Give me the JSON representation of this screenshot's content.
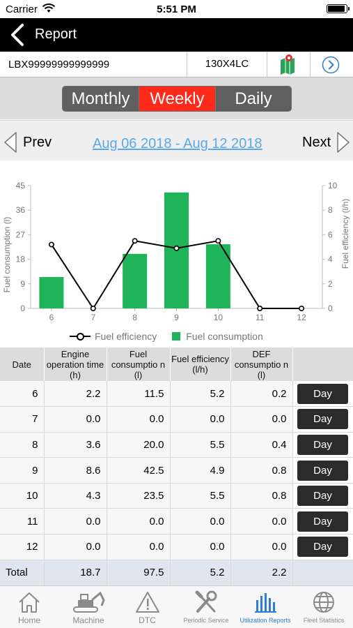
{
  "status_bar": {
    "carrier": "Carrier",
    "time": "5:51 PM",
    "battery_level": 0.95
  },
  "nav": {
    "title": "Report"
  },
  "machine": {
    "serial": "LBX99999999999999",
    "model": "130X4LC"
  },
  "period_tabs": [
    {
      "label": "Monthly",
      "active": false
    },
    {
      "label": "Weekly",
      "active": true
    },
    {
      "label": "Daily",
      "active": false
    }
  ],
  "date_nav": {
    "prev": "Prev",
    "range": "Aug 06 2018 - Aug 12 2018",
    "next": "Next"
  },
  "colors": {
    "bar": "#1fb45a",
    "active_tab": "#ff2a1a",
    "link": "#5aa8e8",
    "active_nav": "#2d7cd6"
  },
  "chart_data": {
    "type": "bar",
    "categories": [
      "6",
      "7",
      "8",
      "9",
      "10",
      "11",
      "12"
    ],
    "series": [
      {
        "name": "Fuel consumption",
        "type": "bar",
        "axis": "left",
        "values": [
          11.5,
          0.0,
          20.0,
          42.5,
          23.5,
          0.0,
          0.0
        ]
      },
      {
        "name": "Fuel efficiency",
        "type": "line",
        "axis": "right",
        "values": [
          5.2,
          0.0,
          5.5,
          4.9,
          5.5,
          0.0,
          0.0
        ]
      }
    ],
    "ylabel": "Fuel consumption (l)",
    "y2label": "Fuel efficiency (l/h)",
    "ylim": [
      0,
      45
    ],
    "yticks": [
      0,
      9,
      18,
      27,
      36,
      45
    ],
    "y2lim": [
      0,
      10
    ],
    "y2ticks": [
      0,
      2,
      4,
      6,
      8,
      10
    ],
    "legend_position": "bottom",
    "grid": false
  },
  "legend": {
    "line_label": "Fuel efficiency",
    "bar_label": "Fuel consumption"
  },
  "table": {
    "headers": [
      "Date",
      "Engine operation time (h)",
      "Fuel consumptio n (l)",
      "Fuel efficiency (l/h)",
      "DEF consumptio n (l)",
      ""
    ],
    "rows": [
      [
        "6",
        "2.2",
        "11.5",
        "5.2",
        "0.2"
      ],
      [
        "7",
        "0.0",
        "0.0",
        "0.0",
        "0.0"
      ],
      [
        "8",
        "3.6",
        "20.0",
        "5.5",
        "0.4"
      ],
      [
        "9",
        "8.6",
        "42.5",
        "4.9",
        "0.8"
      ],
      [
        "10",
        "4.3",
        "23.5",
        "5.5",
        "0.8"
      ],
      [
        "11",
        "0.0",
        "0.0",
        "0.0",
        "0.0"
      ],
      [
        "12",
        "0.0",
        "0.0",
        "0.0",
        "0.0"
      ]
    ],
    "row_button": "Day",
    "total": [
      "Total",
      "18.7",
      "97.5",
      "5.2",
      "2.2"
    ]
  },
  "tabbar": [
    {
      "label": "Home",
      "icon": "home-icon",
      "active": false
    },
    {
      "label": "Machine",
      "icon": "excavator-icon",
      "active": false
    },
    {
      "label": "DTC",
      "icon": "warning-icon",
      "active": false
    },
    {
      "label": "Periodic Service",
      "icon": "tools-icon",
      "active": false
    },
    {
      "label": "Utilization Reports",
      "icon": "bar-chart-icon",
      "active": true
    },
    {
      "label": "Fleet Statistics",
      "icon": "globe-icon",
      "active": false
    }
  ]
}
